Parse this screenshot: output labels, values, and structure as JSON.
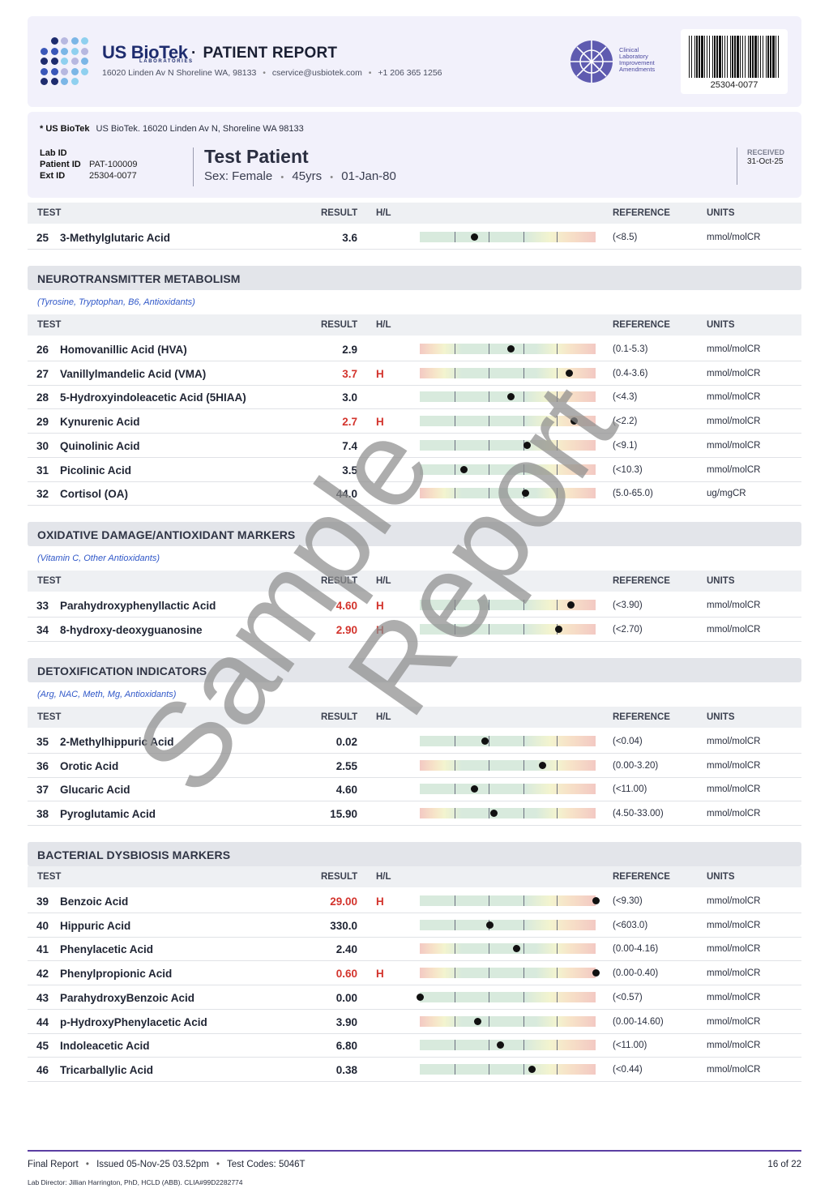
{
  "header": {
    "brand": "US BioTek",
    "brand_sub": "LABORATORIES",
    "separator": "·",
    "title": "PATIENT REPORT",
    "address": "16020 Linden Av N Shoreline WA, 98133",
    "email": "cservice@usbiotek.com",
    "phone": "+1 206 365 1256",
    "clia_words": [
      "Clinical",
      "Laboratory",
      "Improvement",
      "Amendments"
    ],
    "barcode_number": "25304-0077"
  },
  "patient": {
    "lab_name": "* US BioTek",
    "lab_address": "US BioTek. 16020 Linden Av N, Shoreline WA 98133",
    "lab_id_label": "Lab ID",
    "patient_id_label": "Patient ID",
    "patient_id": "PAT-100009",
    "ext_id_label": "Ext ID",
    "ext_id": "25304-0077",
    "name": "Test Patient",
    "sex": "Sex: Female",
    "age": "45yrs",
    "dob": "01-Jan-80",
    "received_label": "RECEIVED",
    "received_date": "31-Oct-25"
  },
  "columns": {
    "test": "TEST",
    "result": "RESULT",
    "hl": "H/L",
    "reference": "REFERENCE",
    "units": "UNITS"
  },
  "top_rows": [
    {
      "num": "25",
      "name": "3-Methylglutaric Acid",
      "result": "3.6",
      "hl": "",
      "reference": "(<8.5)",
      "units": "mmol/molCR",
      "marker": 0.31,
      "scale": "low"
    }
  ],
  "sections": [
    {
      "title": "NEUROTRANSMITTER METABOLISM",
      "note": "(Tyrosine, Tryptophan, B6, Antioxidants)",
      "rows": [
        {
          "num": "26",
          "name": "Homovanillic Acid (HVA)",
          "result": "2.9",
          "hl": "",
          "reference": "(0.1-5.3)",
          "units": "mmol/molCR",
          "marker": 0.52,
          "scale": "range"
        },
        {
          "num": "27",
          "name": "Vanillylmandelic Acid (VMA)",
          "result": "3.7",
          "hl": "H",
          "reference": "(0.4-3.6)",
          "units": "mmol/molCR",
          "marker": 0.85,
          "scale": "range"
        },
        {
          "num": "28",
          "name": "5-Hydroxyindoleacetic Acid (5HIAA)",
          "result": "3.0",
          "hl": "",
          "reference": "(<4.3)",
          "units": "mmol/molCR",
          "marker": 0.52,
          "scale": "low"
        },
        {
          "num": "29",
          "name": "Kynurenic Acid",
          "result": "2.7",
          "hl": "H",
          "reference": "(<2.2)",
          "units": "mmol/molCR",
          "marker": 0.88,
          "scale": "low"
        },
        {
          "num": "30",
          "name": "Quinolinic Acid",
          "result": "7.4",
          "hl": "",
          "reference": "(<9.1)",
          "units": "mmol/molCR",
          "marker": 0.61,
          "scale": "low"
        },
        {
          "num": "31",
          "name": "Picolinic Acid",
          "result": "3.5",
          "hl": "",
          "reference": "(<10.3)",
          "units": "mmol/molCR",
          "marker": 0.25,
          "scale": "low"
        },
        {
          "num": "32",
          "name": "Cortisol (OA)",
          "result": "44.0",
          "hl": "",
          "reference": "(5.0-65.0)",
          "units": "ug/mgCR",
          "marker": 0.6,
          "scale": "range"
        }
      ]
    },
    {
      "title": "OXIDATIVE DAMAGE/ANTIOXIDANT MARKERS",
      "note": "(Vitamin C, Other Antioxidants)",
      "rows": [
        {
          "num": "33",
          "name": "Parahydroxyphenyllactic Acid",
          "result": "4.60",
          "hl": "H",
          "reference": "(<3.90)",
          "units": "mmol/molCR",
          "marker": 0.86,
          "scale": "low"
        },
        {
          "num": "34",
          "name": "8-hydroxy-deoxyguanosine",
          "result": "2.90",
          "hl": "H",
          "reference": "(<2.70)",
          "units": "mmol/molCR",
          "marker": 0.79,
          "scale": "low"
        }
      ]
    },
    {
      "title": "DETOXIFICATION INDICATORS",
      "note": "(Arg, NAC, Meth, Mg, Antioxidants)",
      "rows": [
        {
          "num": "35",
          "name": "2-Methylhippuric Acid",
          "result": "0.02",
          "hl": "",
          "reference": "(<0.04)",
          "units": "mmol/molCR",
          "marker": 0.37,
          "scale": "low"
        },
        {
          "num": "36",
          "name": "Orotic Acid",
          "result": "2.55",
          "hl": "",
          "reference": "(0.00-3.20)",
          "units": "mmol/molCR",
          "marker": 0.7,
          "scale": "range"
        },
        {
          "num": "37",
          "name": "Glucaric Acid",
          "result": "4.60",
          "hl": "",
          "reference": "(<11.00)",
          "units": "mmol/molCR",
          "marker": 0.31,
          "scale": "low"
        },
        {
          "num": "38",
          "name": "Pyroglutamic Acid",
          "result": "15.90",
          "hl": "",
          "reference": "(4.50-33.00)",
          "units": "mmol/molCR",
          "marker": 0.42,
          "scale": "range"
        }
      ]
    },
    {
      "title": "BACTERIAL DYSBIOSIS MARKERS",
      "note": "",
      "rows": [
        {
          "num": "39",
          "name": "Benzoic Acid",
          "result": "29.00",
          "hl": "H",
          "reference": "(<9.30)",
          "units": "mmol/molCR",
          "marker": 1.0,
          "scale": "low"
        },
        {
          "num": "40",
          "name": "Hippuric Acid",
          "result": "330.0",
          "hl": "",
          "reference": "(<603.0)",
          "units": "mmol/molCR",
          "marker": 0.4,
          "scale": "low"
        },
        {
          "num": "41",
          "name": "Phenylacetic Acid",
          "result": "2.40",
          "hl": "",
          "reference": "(0.00-4.16)",
          "units": "mmol/molCR",
          "marker": 0.55,
          "scale": "range"
        },
        {
          "num": "42",
          "name": "Phenylpropionic Acid",
          "result": "0.60",
          "hl": "H",
          "reference": "(0.00-0.40)",
          "units": "mmol/molCR",
          "marker": 1.0,
          "scale": "range"
        },
        {
          "num": "43",
          "name": "ParahydroxyBenzoic Acid",
          "result": "0.00",
          "hl": "",
          "reference": "(<0.57)",
          "units": "mmol/molCR",
          "marker": 0.0,
          "scale": "low"
        },
        {
          "num": "44",
          "name": "p-HydroxyPhenylacetic Acid",
          "result": "3.90",
          "hl": "",
          "reference": "(0.00-14.60)",
          "units": "mmol/molCR",
          "marker": 0.33,
          "scale": "range"
        },
        {
          "num": "45",
          "name": "Indoleacetic Acid",
          "result": "6.80",
          "hl": "",
          "reference": "(<11.00)",
          "units": "mmol/molCR",
          "marker": 0.46,
          "scale": "low"
        },
        {
          "num": "46",
          "name": "Tricarballylic Acid",
          "result": "0.38",
          "hl": "",
          "reference": "(<0.44)",
          "units": "mmol/molCR",
          "marker": 0.64,
          "scale": "low"
        }
      ]
    }
  ],
  "watermark": {
    "line1": "Sample",
    "line2": "Report"
  },
  "footer": {
    "status": "Final Report",
    "issued": "Issued 05-Nov-25 03.52pm",
    "codes": "Test Codes: 5046T",
    "page": "16 of 22",
    "director": "Lab Director: Jillian Harrington, PhD, HCLD (ABB). CLIA#99D2282774"
  },
  "colors": {
    "brand": "#1e2c6e",
    "high": "#d3342d",
    "note": "#2f57c8",
    "rule": "#5b3fa3"
  }
}
